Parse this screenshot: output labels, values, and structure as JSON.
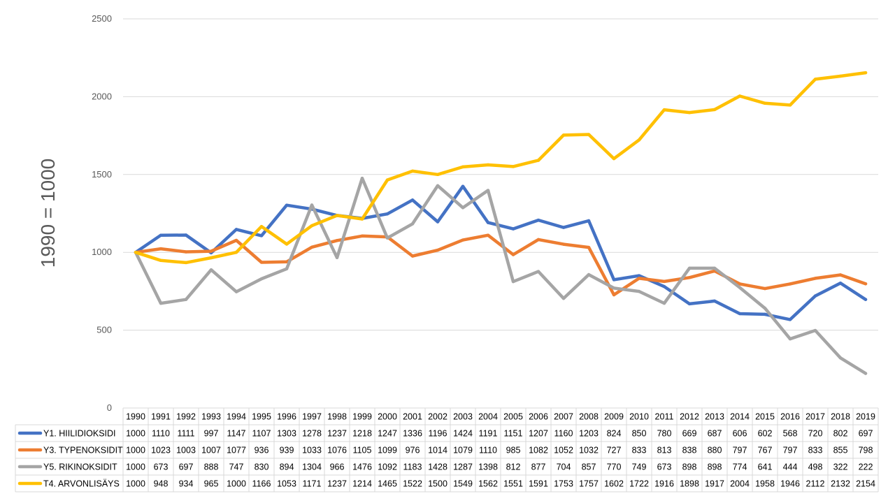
{
  "chart_data": {
    "type": "line",
    "ylabel": "1990 = 1000",
    "ylim": [
      0,
      2500
    ],
    "yticks": [
      0,
      500,
      1000,
      1500,
      2000,
      2500
    ],
    "grid": true,
    "legend": "data-table-below",
    "categories": [
      "1990",
      "1991",
      "1992",
      "1993",
      "1994",
      "1995",
      "1996",
      "1997",
      "1998",
      "1999",
      "2000",
      "2001",
      "2002",
      "2003",
      "2004",
      "2005",
      "2006",
      "2007",
      "2008",
      "2009",
      "2010",
      "2011",
      "2012",
      "2013",
      "2014",
      "2015",
      "2016",
      "2017",
      "2018",
      "2019"
    ],
    "series": [
      {
        "name": "Y1. HIILIDIOKSIDI",
        "color": "#4472C4",
        "values": [
          1000,
          1110,
          1111,
          997,
          1147,
          1107,
          1303,
          1278,
          1237,
          1218,
          1247,
          1336,
          1196,
          1424,
          1191,
          1151,
          1207,
          1160,
          1203,
          824,
          850,
          780,
          669,
          687,
          606,
          602,
          568,
          720,
          802,
          697
        ]
      },
      {
        "name": "Y3. TYPENOKSIDIT",
        "color": "#ED7D31",
        "values": [
          1000,
          1023,
          1003,
          1007,
          1077,
          936,
          939,
          1033,
          1076,
          1105,
          1099,
          976,
          1014,
          1079,
          1110,
          985,
          1082,
          1052,
          1032,
          727,
          833,
          813,
          838,
          880,
          797,
          767,
          797,
          833,
          855,
          798
        ]
      },
      {
        "name": "Y5. RIKINOKSIDIT",
        "color": "#A5A5A5",
        "values": [
          1000,
          673,
          697,
          888,
          747,
          830,
          894,
          1304,
          966,
          1476,
          1092,
          1183,
          1428,
          1287,
          1398,
          812,
          877,
          704,
          857,
          770,
          749,
          673,
          898,
          898,
          774,
          641,
          444,
          498,
          322,
          222
        ]
      },
      {
        "name": "T4. ARVONLISÄYS",
        "color": "#FFC000",
        "values": [
          1000,
          948,
          934,
          965,
          1000,
          1166,
          1053,
          1171,
          1237,
          1214,
          1465,
          1522,
          1500,
          1549,
          1562,
          1551,
          1591,
          1753,
          1757,
          1602,
          1722,
          1916,
          1898,
          1917,
          2004,
          1958,
          1946,
          2112,
          2132,
          2154
        ]
      }
    ]
  }
}
